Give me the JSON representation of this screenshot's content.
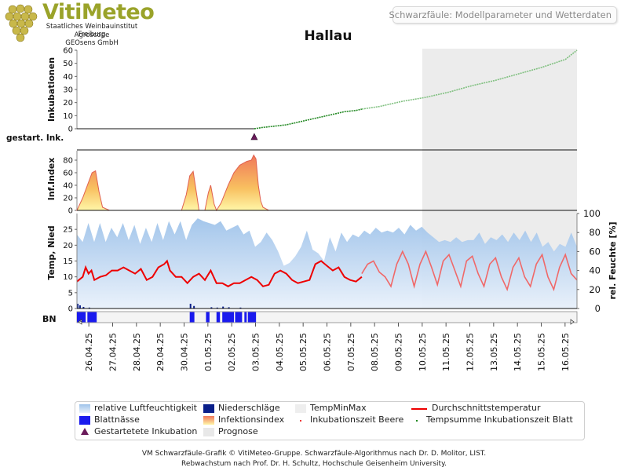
{
  "app": {
    "header_title": "Schwarzfäule: Modellparameter und Wetterdaten",
    "logo": {
      "name": "VitiMeteo",
      "lines": [
        "Staatliches Weinbauinstitut Freiburg",
        "Agroscope",
        "GEOsens GmbH"
      ]
    }
  },
  "chart_data": {
    "type": "line",
    "title": "Hallau",
    "x": [
      "26.04.25",
      "27.04.25",
      "28.04.25",
      "29.04.25",
      "30.04.25",
      "01.05.25",
      "02.05.25",
      "03.05.25",
      "04.05.25",
      "05.05.25",
      "06.05.25",
      "07.05.25",
      "08.05.25",
      "09.05.25",
      "10.05.25",
      "11.05.25",
      "12.05.25",
      "13.05.25",
      "14.05.25",
      "15.05.25",
      "16.05.25"
    ],
    "x_start": "25.04.25 12:00",
    "x_end": "16.05.25 12:00",
    "forecast_start": "10.05.25 00:00",
    "panels": {
      "inkubationen": {
        "ylabel": "Inkubationen",
        "yticks": [
          0,
          10,
          20,
          30,
          40,
          50,
          60
        ],
        "ylim": [
          0,
          60
        ],
        "series": [
          {
            "points": [
              [
                0,
                0
              ],
              [
                15.25,
                0
              ]
            ]
          },
          {
            "points": [
              [
                15.25,
                0
              ],
              [
                16,
                1
              ],
              [
                17,
                2
              ],
              [
                18,
                3
              ],
              [
                19,
                5
              ],
              [
                20,
                7
              ],
              [
                21,
                9
              ],
              [
                22,
                11
              ],
              [
                23,
                13
              ],
              [
                24,
                14
              ],
              [
                24.5,
                15
              ]
            ]
          },
          {
            "points": [
              [
                24.5,
                15
              ],
              [
                26,
                17
              ],
              [
                28,
                21
              ],
              [
                30,
                24
              ],
              [
                32,
                28
              ],
              [
                34,
                33
              ],
              [
                36,
                37
              ],
              [
                38,
                42
              ],
              [
                40,
                47
              ],
              [
                42,
                53
              ],
              [
                43,
                60
              ]
            ]
          }
        ]
      },
      "gestartete_inkubation": {
        "ylabel": "gestart. Ink.",
        "markers": [
          15.25
        ]
      },
      "infektionsindex": {
        "ylabel": "Inf.Index",
        "yticks": [
          0,
          20,
          40,
          60,
          80
        ],
        "ylim": [
          0,
          95
        ],
        "series": [
          {
            "points": [
              [
                0,
                0
              ],
              [
                0.5,
                20
              ],
              [
                1,
                45
              ],
              [
                1.3,
                60
              ],
              [
                1.6,
                63
              ],
              [
                1.9,
                30
              ],
              [
                2.2,
                5
              ],
              [
                2.8,
                0
              ],
              [
                9,
                0
              ],
              [
                9.4,
                25
              ],
              [
                9.7,
                55
              ],
              [
                10,
                62
              ],
              [
                10.3,
                25
              ],
              [
                10.5,
                0
              ],
              [
                11,
                0
              ],
              [
                11.3,
                28
              ],
              [
                11.5,
                40
              ],
              [
                11.8,
                10
              ],
              [
                12,
                0
              ],
              [
                12.4,
                12
              ],
              [
                13,
                40
              ],
              [
                13.5,
                60
              ],
              [
                14,
                72
              ],
              [
                14.6,
                78
              ],
              [
                15,
                80
              ],
              [
                15.2,
                88
              ],
              [
                15.4,
                82
              ],
              [
                15.6,
                40
              ],
              [
                15.8,
                15
              ],
              [
                16,
                5
              ],
              [
                16.5,
                0
              ]
            ]
          }
        ]
      },
      "wetter": {
        "ylabel": "Temp, Nied",
        "y2label": "rel. Feuchte [%]",
        "yticks": [
          0,
          5,
          10,
          15,
          20,
          25
        ],
        "y2ticks": [
          0,
          20,
          40,
          60,
          80,
          100
        ],
        "ylim": [
          0,
          30
        ],
        "y2lim": [
          0,
          100
        ],
        "durchschnittstemperatur": [
          [
            0,
            8.5
          ],
          [
            0.5,
            10
          ],
          [
            0.75,
            13
          ],
          [
            1,
            11
          ],
          [
            1.25,
            12
          ],
          [
            1.5,
            9
          ],
          [
            2,
            10
          ],
          [
            2.5,
            10.5
          ],
          [
            3,
            12
          ],
          [
            3.5,
            12
          ],
          [
            4,
            13
          ],
          [
            4.5,
            12
          ],
          [
            5,
            11
          ],
          [
            5.5,
            12.5
          ],
          [
            6,
            9
          ],
          [
            6.5,
            10
          ],
          [
            7,
            13
          ],
          [
            7.5,
            14
          ],
          [
            7.75,
            15
          ],
          [
            8,
            12
          ],
          [
            8.5,
            10
          ],
          [
            9,
            10
          ],
          [
            9.5,
            8
          ],
          [
            10,
            10
          ],
          [
            10.5,
            11
          ],
          [
            11,
            9
          ],
          [
            11.5,
            12
          ],
          [
            12,
            8
          ],
          [
            12.5,
            8
          ],
          [
            13,
            7
          ],
          [
            13.5,
            8
          ],
          [
            14,
            8
          ],
          [
            14.5,
            9
          ],
          [
            15,
            10
          ],
          [
            15.5,
            9
          ],
          [
            16,
            7
          ],
          [
            16.5,
            7.5
          ],
          [
            17,
            11
          ],
          [
            17.5,
            12
          ],
          [
            18,
            11
          ],
          [
            18.5,
            9
          ],
          [
            19,
            8
          ],
          [
            19.5,
            8.5
          ],
          [
            20,
            9
          ],
          [
            20.5,
            14
          ],
          [
            21,
            15
          ],
          [
            21.5,
            13.5
          ],
          [
            22,
            12
          ],
          [
            22.5,
            13
          ],
          [
            23,
            10
          ],
          [
            23.5,
            9
          ],
          [
            24,
            8.5
          ],
          [
            24.5,
            10
          ]
        ],
        "forecast_temperatur": [
          [
            24.5,
            11
          ],
          [
            25,
            14
          ],
          [
            25.5,
            15
          ],
          [
            26,
            11.5
          ],
          [
            26.5,
            10
          ],
          [
            27,
            7
          ],
          [
            27.5,
            14
          ],
          [
            28,
            18
          ],
          [
            28.5,
            14
          ],
          [
            29,
            7
          ],
          [
            29.5,
            14
          ],
          [
            30,
            18
          ],
          [
            30.5,
            13
          ],
          [
            31,
            7.5
          ],
          [
            31.5,
            15
          ],
          [
            32,
            17
          ],
          [
            32.5,
            12
          ],
          [
            33,
            7
          ],
          [
            33.5,
            15
          ],
          [
            34,
            16.5
          ],
          [
            34.5,
            11
          ],
          [
            35,
            7
          ],
          [
            35.5,
            14
          ],
          [
            36,
            16
          ],
          [
            36.5,
            10
          ],
          [
            37,
            6
          ],
          [
            37.5,
            13
          ],
          [
            38,
            16
          ],
          [
            38.5,
            10
          ],
          [
            39,
            7
          ],
          [
            39.5,
            14
          ],
          [
            40,
            17
          ],
          [
            40.5,
            10
          ],
          [
            41,
            6
          ],
          [
            41.5,
            13
          ],
          [
            42,
            17
          ],
          [
            42.5,
            11
          ],
          [
            43,
            9
          ]
        ],
        "luftfeuchte": [
          [
            0,
            78
          ],
          [
            1,
            70
          ],
          [
            2,
            90
          ],
          [
            3,
            70
          ],
          [
            4,
            90
          ],
          [
            5,
            70
          ],
          [
            6,
            85
          ],
          [
            7,
            75
          ],
          [
            8,
            90
          ],
          [
            9,
            72
          ],
          [
            10,
            88
          ],
          [
            11,
            68
          ],
          [
            12,
            85
          ],
          [
            13,
            70
          ],
          [
            14,
            90
          ],
          [
            15,
            72
          ],
          [
            16,
            92
          ],
          [
            17,
            78
          ],
          [
            18,
            92
          ],
          [
            19,
            72
          ],
          [
            20,
            88
          ],
          [
            21,
            95
          ],
          [
            22,
            92
          ],
          [
            23,
            90
          ],
          [
            24,
            88
          ],
          [
            25,
            92
          ],
          [
            26,
            82
          ],
          [
            27,
            85
          ],
          [
            28,
            88
          ],
          [
            29,
            78
          ],
          [
            30,
            82
          ],
          [
            31,
            65
          ],
          [
            32,
            70
          ],
          [
            33,
            80
          ],
          [
            34,
            72
          ],
          [
            35,
            60
          ],
          [
            36,
            45
          ],
          [
            37,
            48
          ],
          [
            38,
            55
          ],
          [
            39,
            65
          ],
          [
            40,
            82
          ],
          [
            41,
            62
          ],
          [
            42,
            58
          ],
          [
            43,
            50
          ],
          [
            44,
            75
          ],
          [
            45,
            60
          ],
          [
            46,
            80
          ],
          [
            47,
            70
          ],
          [
            48,
            78
          ],
          [
            49,
            75
          ],
          [
            50,
            82
          ],
          [
            51,
            78
          ],
          [
            52,
            85
          ],
          [
            53,
            80
          ],
          [
            54,
            82
          ],
          [
            55,
            80
          ],
          [
            56,
            85
          ],
          [
            57,
            78
          ],
          [
            58,
            88
          ],
          [
            59,
            82
          ],
          [
            60,
            86
          ],
          [
            61,
            80
          ],
          [
            62,
            75
          ],
          [
            63,
            70
          ],
          [
            64,
            72
          ],
          [
            65,
            70
          ],
          [
            66,
            75
          ],
          [
            67,
            70
          ],
          [
            68,
            72
          ],
          [
            69,
            72
          ],
          [
            70,
            80
          ],
          [
            71,
            68
          ],
          [
            72,
            75
          ],
          [
            73,
            72
          ],
          [
            74,
            78
          ],
          [
            75,
            70
          ],
          [
            76,
            80
          ],
          [
            77,
            72
          ],
          [
            78,
            82
          ],
          [
            79,
            70
          ],
          [
            80,
            80
          ],
          [
            81,
            65
          ],
          [
            82,
            70
          ],
          [
            83,
            60
          ],
          [
            84,
            68
          ],
          [
            85,
            65
          ],
          [
            86,
            80
          ],
          [
            87,
            65
          ]
        ],
        "niederschlag": [
          [
            0,
            1.5
          ],
          [
            0.2,
            1
          ],
          [
            0.5,
            0.5
          ],
          [
            1,
            0.3
          ],
          [
            9.7,
            1.5
          ],
          [
            10,
            0.8
          ],
          [
            11.5,
            0.4
          ],
          [
            12,
            0.3
          ],
          [
            12.5,
            0.6
          ],
          [
            13,
            0.4
          ],
          [
            14,
            0.3
          ]
        ]
      },
      "blattnaesse": {
        "ylabel": "BN",
        "intervals": [
          [
            0,
            0.75
          ],
          [
            0.9,
            1.7
          ],
          [
            9.7,
            10.1
          ],
          [
            11.1,
            11.4
          ],
          [
            12,
            12.3
          ],
          [
            12.5,
            13.5
          ],
          [
            13.6,
            14.2
          ],
          [
            14.4,
            14.6
          ],
          [
            14.7,
            15.4
          ]
        ]
      }
    },
    "legend": [
      {
        "label": "relative Luftfeuchtigkeit",
        "color": "#a8c8ec",
        "kind": "area-blue"
      },
      {
        "label": "Niederschläge",
        "color": "#0a1f8a",
        "kind": "bar"
      },
      {
        "label": "TempMinMax",
        "color": "#eeeeee",
        "kind": "box"
      },
      {
        "label": "Durchschnittstemperatur",
        "color": "#ee0000",
        "kind": "line"
      },
      {
        "label": "Blattnässe",
        "color": "#1a1aee",
        "kind": "box"
      },
      {
        "label": "Infektionsindex",
        "color": "#f6b060",
        "kind": "area-warm"
      },
      {
        "label": "Inkubationszeit Beere",
        "color": "#ee3333",
        "kind": "dot"
      },
      {
        "label": "Tempsumme Inkubationszeit Blatt",
        "color": "#228822",
        "kind": "dot"
      },
      {
        "label": "Gestartetete Inkubation",
        "color": "#6a1a5a",
        "kind": "triangle"
      },
      {
        "label": "Prognose",
        "color": "#e8e8e8",
        "kind": "box"
      }
    ]
  },
  "footer": {
    "line1": "VM Schwarzfäule-Grafik © VitiMeteo-Gruppe. Schwarzfäule-Algorithmus nach Dr. D. Molitor, LIST.",
    "line2": "Rebwachstum nach Prof. Dr. H. Schultz, Hochschule Geisenheim University."
  }
}
